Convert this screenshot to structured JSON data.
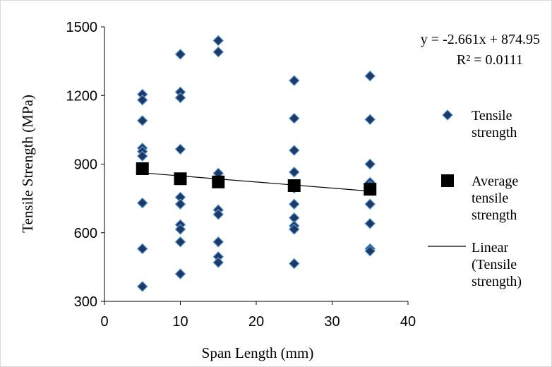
{
  "chart_data": {
    "type": "scatter",
    "title": "",
    "xlabel": "Span Length (mm)",
    "ylabel": "Tensile Strength (MPa)",
    "xlim": [
      0,
      40
    ],
    "ylim": [
      300,
      1500
    ],
    "x_ticks": [
      "0",
      "10",
      "20",
      "30",
      "40"
    ],
    "y_ticks": [
      "300",
      "600",
      "900",
      "1200",
      "1500"
    ],
    "grid": false,
    "legend_position": "right",
    "series": [
      {
        "name": "Tensile strength",
        "marker": "diamond",
        "color": "#1F3864",
        "points": [
          [
            5,
            1205
          ],
          [
            5,
            1180
          ],
          [
            5,
            1090
          ],
          [
            5,
            970
          ],
          [
            5,
            955
          ],
          [
            5,
            935
          ],
          [
            5,
            880
          ],
          [
            5,
            730
          ],
          [
            5,
            530
          ],
          [
            5,
            365
          ],
          [
            10,
            1380
          ],
          [
            10,
            1215
          ],
          [
            10,
            1190
          ],
          [
            10,
            965
          ],
          [
            10,
            755
          ],
          [
            10,
            725
          ],
          [
            10,
            635
          ],
          [
            10,
            615
          ],
          [
            10,
            560
          ],
          [
            10,
            420
          ],
          [
            15,
            1440
          ],
          [
            15,
            1390
          ],
          [
            15,
            860
          ],
          [
            15,
            700
          ],
          [
            15,
            680
          ],
          [
            15,
            560
          ],
          [
            15,
            495
          ],
          [
            15,
            470
          ],
          [
            25,
            1265
          ],
          [
            25,
            1100
          ],
          [
            25,
            960
          ],
          [
            25,
            865
          ],
          [
            25,
            795
          ],
          [
            25,
            725
          ],
          [
            25,
            665
          ],
          [
            25,
            630
          ],
          [
            25,
            615
          ],
          [
            25,
            465
          ],
          [
            35,
            1285
          ],
          [
            35,
            1095
          ],
          [
            35,
            900
          ],
          [
            35,
            820
          ],
          [
            35,
            805
          ],
          [
            35,
            725
          ],
          [
            35,
            640
          ],
          [
            35,
            530
          ],
          [
            35,
            520
          ]
        ]
      },
      {
        "name": "Average tensile strength",
        "marker": "square",
        "color": "#000000",
        "points": [
          [
            5,
            880
          ],
          [
            10,
            836
          ],
          [
            15,
            822
          ],
          [
            25,
            806
          ],
          [
            35,
            790
          ]
        ]
      },
      {
        "name": "Linear (Tensile strength)",
        "type": "trendline",
        "color": "#000000",
        "slope": -2.661,
        "intercept": 874.95,
        "x_range": [
          5,
          35
        ]
      }
    ],
    "annotations": {
      "equation": "y = -2.661x + 874.95",
      "r_squared": "R² = 0.0111"
    },
    "legend": [
      {
        "lines": [
          "Tensile",
          "strength"
        ]
      },
      {
        "lines": [
          "Average",
          "tensile",
          "strength"
        ]
      },
      {
        "lines": [
          "Linear",
          "(Tensile",
          "strength)"
        ]
      }
    ]
  }
}
